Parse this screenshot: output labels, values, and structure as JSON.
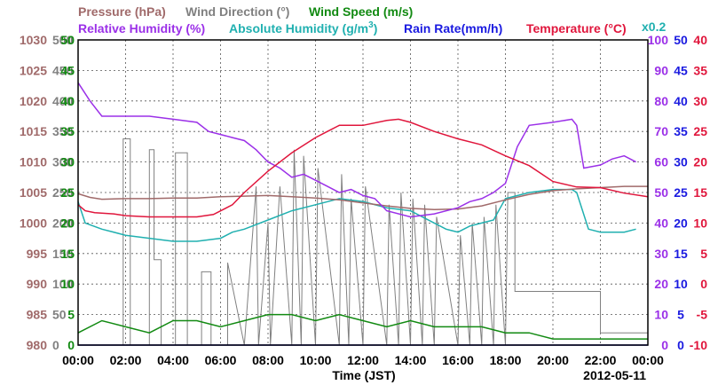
{
  "chart_data": {
    "type": "line",
    "date": "2012-05-11",
    "xlabel": "Time (JST)",
    "x_ticks": [
      "00:00",
      "02:00",
      "04:00",
      "06:00",
      "08:00",
      "10:00",
      "12:00",
      "14:00",
      "16:00",
      "18:00",
      "20:00",
      "22:00",
      "00:00"
    ],
    "axes": {
      "pressure": {
        "label": "Pressure (hPa)",
        "color": "#a06a6a",
        "ylim": [
          980,
          1030
        ],
        "ticks": [
          980,
          985,
          990,
          995,
          1000,
          1005,
          1010,
          1015,
          1020,
          1025,
          1030
        ]
      },
      "wind_dir": {
        "label": "Wind Direction (°)",
        "color": "#808080",
        "ylim": [
          0,
          500
        ],
        "ticks": [
          0,
          50,
          100,
          150,
          200,
          250,
          300,
          350,
          400,
          450,
          500
        ]
      },
      "wind_speed": {
        "label": "Wind Speed (m/s)",
        "color": "#128a12",
        "ylim": [
          0,
          50
        ],
        "ticks": [
          0,
          5,
          10,
          15,
          20,
          25,
          30,
          35,
          40,
          45,
          50
        ]
      },
      "rel_hum": {
        "label": "Relative Humidity (%)",
        "color": "#9b30e8",
        "ylim": [
          0,
          100
        ],
        "ticks": [
          0,
          10,
          20,
          30,
          40,
          50,
          60,
          70,
          80,
          90,
          100
        ]
      },
      "abs_hum": {
        "label": "Absolute Humidity (g/m",
        "sup": "3",
        "close": ")",
        "scale_note": "x0.2",
        "color": "#20b0b0"
      },
      "rain": {
        "label": "Rain Rate(mm/h)",
        "color": "#1a1ae0",
        "ylim": [
          0,
          50
        ],
        "ticks": [
          0,
          5,
          10,
          15,
          20,
          25,
          30,
          35,
          40,
          45,
          50
        ]
      },
      "temp": {
        "label": "Temperature (°C)",
        "color": "#e0163c",
        "ylim": [
          -10,
          40
        ],
        "ticks": [
          -10,
          -5,
          0,
          5,
          10,
          15,
          20,
          25,
          30,
          35,
          40
        ]
      }
    },
    "series": [
      {
        "key": "pressure",
        "x": [
          0,
          0.5,
          1,
          2,
          3,
          4,
          5,
          6,
          7,
          8,
          9,
          10,
          11,
          12,
          13,
          14,
          15,
          16,
          17,
          18,
          19,
          20,
          21,
          22,
          23,
          24
        ],
        "y": [
          1004.8,
          1004.2,
          1003.9,
          1004.0,
          1004.0,
          1004.1,
          1004.1,
          1004.3,
          1004.4,
          1004.5,
          1004.3,
          1004.1,
          1003.8,
          1003.3,
          1002.8,
          1002.4,
          1002.2,
          1002.3,
          1002.8,
          1003.8,
          1004.7,
          1005.3,
          1005.6,
          1005.8,
          1006.0,
          1006.0
        ]
      },
      {
        "key": "temp",
        "x": [
          0,
          0.3,
          0.7,
          1.5,
          2,
          3,
          4,
          5,
          5.7,
          6.5,
          7,
          8,
          9,
          10,
          10.5,
          11,
          12,
          13,
          13.5,
          14,
          15,
          16,
          17,
          18,
          19,
          20,
          21,
          22,
          23,
          24
        ],
        "y": [
          13,
          12,
          11.7,
          11.5,
          11.2,
          11,
          11,
          11,
          11.4,
          13,
          15,
          18.5,
          21.5,
          24,
          25,
          26,
          26,
          26.8,
          27,
          26.5,
          25,
          23.8,
          22.8,
          21,
          19.4,
          16.8,
          15.9,
          15.8,
          14.9,
          14.3
        ]
      },
      {
        "key": "rel_hum",
        "x": [
          0,
          0.5,
          1,
          2,
          3,
          4,
          5,
          5.5,
          6,
          6.5,
          7,
          7.5,
          8,
          8.5,
          9,
          9.5,
          10,
          10.5,
          11,
          11.5,
          12,
          12.5,
          13,
          14,
          15,
          16,
          16.5,
          17,
          17.5,
          18,
          18.5,
          19,
          20,
          20.8,
          21,
          21.3,
          22,
          22.5,
          23,
          23.5
        ],
        "y": [
          86,
          80,
          75,
          75,
          75,
          74,
          73,
          70,
          69,
          68,
          67,
          64,
          60,
          58,
          55,
          56,
          54,
          52,
          50,
          51,
          49,
          48,
          44,
          42,
          43,
          45,
          47,
          48,
          50,
          53,
          65,
          72,
          73,
          74,
          72,
          58,
          59,
          61,
          62,
          60
        ]
      },
      {
        "key": "abs_hum",
        "x": [
          0,
          0.3,
          1,
          2,
          3,
          4,
          5,
          6,
          6.5,
          7,
          8,
          9,
          10,
          11,
          12,
          13,
          14,
          15,
          15.5,
          16,
          16.5,
          17,
          17.5,
          18,
          19,
          20,
          20.8,
          21,
          21.5,
          22,
          23,
          23.5
        ],
        "y": [
          47,
          40,
          38,
          36,
          35,
          34,
          34,
          35,
          37,
          38,
          41,
          44,
          46,
          48,
          47,
          45,
          44,
          40,
          38,
          37,
          39,
          40,
          41,
          48,
          50,
          51,
          51,
          50,
          38,
          37,
          37,
          38
        ]
      },
      {
        "key": "wind_dir",
        "x": [
          0,
          1.9,
          1.9,
          2.2,
          2.2,
          3,
          3,
          3.2,
          3.2,
          3.5,
          3.5,
          4.1,
          4.1,
          4.6,
          4.6,
          5.2,
          5.2,
          5.6,
          5.6,
          6.3,
          6.3,
          7,
          7.5,
          7.6,
          8,
          8.1,
          8.5,
          9,
          9.1,
          9.4,
          9.5,
          10,
          10.1,
          11,
          11.1,
          11.4,
          11.5,
          12,
          12.1,
          13,
          13.1,
          13.5,
          13.6,
          14,
          14.1,
          14.5,
          14.6,
          15,
          15.1,
          16,
          16.1,
          16.5,
          16.6,
          17,
          17.1,
          17.5,
          17.6,
          18,
          18.1,
          18.4,
          18.4,
          22,
          22,
          24
        ],
        "y": [
          0,
          0,
          338,
          338,
          0,
          0,
          320,
          320,
          140,
          140,
          0,
          0,
          315,
          315,
          0,
          0,
          120,
          120,
          0,
          0,
          135,
          0,
          260,
          0,
          200,
          0,
          260,
          0,
          320,
          0,
          310,
          0,
          290,
          0,
          280,
          0,
          240,
          0,
          260,
          0,
          230,
          0,
          250,
          0,
          240,
          0,
          230,
          0,
          210,
          0,
          180,
          0,
          200,
          0,
          210,
          0,
          230,
          0,
          250,
          250,
          88,
          88,
          20,
          20
        ]
      },
      {
        "key": "wind_speed",
        "x": [
          0,
          1,
          2,
          3,
          4,
          5,
          6,
          7,
          8,
          9,
          10,
          11,
          12,
          13,
          14,
          15,
          16,
          17,
          18,
          19,
          20,
          21,
          22,
          23,
          24
        ],
        "y": [
          2,
          4,
          3,
          2,
          4,
          4,
          3,
          4,
          5,
          5,
          4,
          5,
          4,
          3,
          4,
          3,
          3,
          3,
          2,
          2,
          1,
          1,
          1,
          1,
          1
        ]
      },
      {
        "key": "rain",
        "x": [
          0,
          24
        ],
        "y": [
          0,
          0
        ]
      }
    ]
  }
}
